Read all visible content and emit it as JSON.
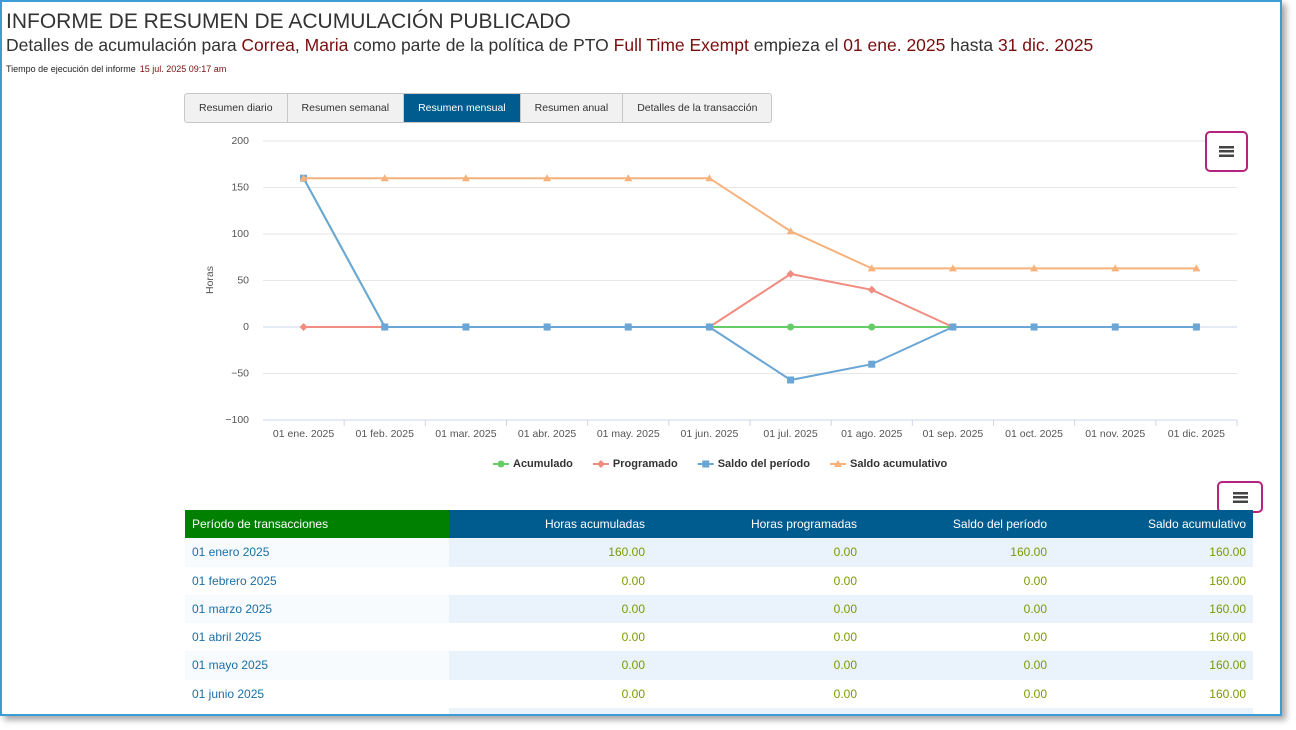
{
  "header": {
    "title": "INFORME DE RESUMEN DE ACUMULACIÓN PUBLICADO",
    "subtitle": [
      {
        "text": "Detalles de acumulación para ",
        "highlight": false
      },
      {
        "text": "Correa",
        "highlight": true
      },
      {
        "text": ", ",
        "highlight": false
      },
      {
        "text": "Maria",
        "highlight": true
      },
      {
        "text": " como parte de la política de PTO ",
        "highlight": false
      },
      {
        "text": "Full Time Exempt",
        "highlight": true
      },
      {
        "text": " empieza el ",
        "highlight": false
      },
      {
        "text": "01 ene. 2025",
        "highlight": true
      },
      {
        "text": " hasta ",
        "highlight": false
      },
      {
        "text": "31 dic. 2025",
        "highlight": true
      }
    ],
    "run_time_label": "Tiempo de ejecución del informe",
    "run_time_value": "15 jul. 2025 09:17 am"
  },
  "tabs": [
    {
      "label": "Resumen diario",
      "active": false
    },
    {
      "label": "Resumen semanal",
      "active": false
    },
    {
      "label": "Resumen mensual",
      "active": true
    },
    {
      "label": "Resumen anual",
      "active": false
    },
    {
      "label": "Detalles de la transacción",
      "active": false
    }
  ],
  "chart_data": {
    "type": "line",
    "y_label": "Horas",
    "categories": [
      "01 ene. 2025",
      "01 feb. 2025",
      "01 mar. 2025",
      "01 abr. 2025",
      "01 may. 2025",
      "01 jun. 2025",
      "01 jul. 2025",
      "01 ago. 2025",
      "01 sep. 2025",
      "01 oct. 2025",
      "01 nov. 2025",
      "01 dic. 2025"
    ],
    "series": [
      {
        "name": "Acumulado",
        "color": "#66cc66",
        "marker": "circle",
        "values": [
          160,
          0,
          0,
          0,
          0,
          0,
          0,
          0,
          0,
          0,
          0,
          0
        ]
      },
      {
        "name": "Programado",
        "color": "#f08c80",
        "marker": "diamond",
        "values": [
          0,
          0,
          0,
          0,
          0,
          0,
          57,
          40,
          0,
          0,
          0,
          0
        ]
      },
      {
        "name": "Saldo del período",
        "color": "#6aa6d6",
        "marker": "square",
        "values": [
          160,
          0,
          0,
          0,
          0,
          0,
          -57,
          -40,
          0,
          0,
          0,
          0
        ]
      },
      {
        "name": "Saldo acumulativo",
        "color": "#f7b27c",
        "marker": "triangle",
        "values": [
          160,
          160,
          160,
          160,
          160,
          160,
          103,
          63,
          63,
          63,
          63,
          63
        ]
      }
    ],
    "ylim": [
      -100,
      200
    ],
    "yticks": [
      {
        "value": -100,
        "label": "−100"
      },
      {
        "value": -50,
        "label": "−50"
      },
      0,
      50,
      100,
      150,
      200
    ],
    "grid": true,
    "legend": "bottom"
  },
  "table": {
    "headers": [
      "Período de transacciones",
      "Horas acumuladas",
      "Horas programadas",
      "Saldo del período",
      "Saldo acumulativo"
    ],
    "rows": [
      [
        "01 enero 2025",
        "160.00",
        "0.00",
        "160.00",
        "160.00"
      ],
      [
        "01 febrero 2025",
        "0.00",
        "0.00",
        "0.00",
        "160.00"
      ],
      [
        "01 marzo 2025",
        "0.00",
        "0.00",
        "0.00",
        "160.00"
      ],
      [
        "01 abril 2025",
        "0.00",
        "0.00",
        "0.00",
        "160.00"
      ],
      [
        "01 mayo 2025",
        "0.00",
        "0.00",
        "0.00",
        "160.00"
      ],
      [
        "01 junio 2025",
        "0.00",
        "0.00",
        "0.00",
        "160.00"
      ]
    ]
  }
}
